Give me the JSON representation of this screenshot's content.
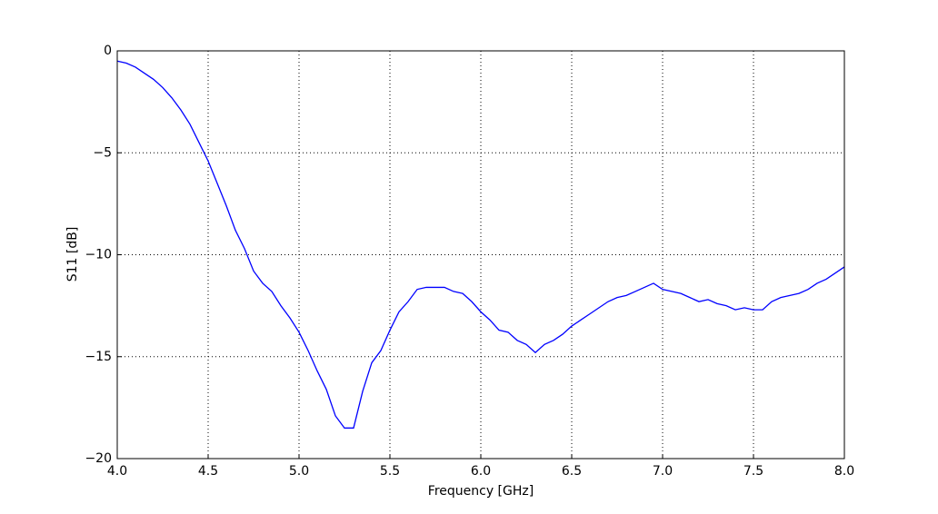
{
  "chart_data": {
    "type": "line",
    "xlabel": "Frequency [GHz]",
    "ylabel": "S11 [dB]",
    "grid": true,
    "x": [
      4.0,
      4.05,
      4.1,
      4.15,
      4.2,
      4.25,
      4.3,
      4.35,
      4.4,
      4.45,
      4.5,
      4.55,
      4.6,
      4.65,
      4.7,
      4.75,
      4.8,
      4.85,
      4.9,
      4.95,
      5.0,
      5.05,
      5.1,
      5.15,
      5.2,
      5.25,
      5.3,
      5.35,
      5.4,
      5.45,
      5.5,
      5.55,
      5.6,
      5.65,
      5.7,
      5.75,
      5.8,
      5.85,
      5.9,
      5.95,
      6.0,
      6.05,
      6.1,
      6.15,
      6.2,
      6.25,
      6.3,
      6.35,
      6.4,
      6.45,
      6.5,
      6.55,
      6.6,
      6.65,
      6.7,
      6.75,
      6.8,
      6.85,
      6.9,
      6.95,
      7.0,
      7.05,
      7.1,
      7.15,
      7.2,
      7.25,
      7.3,
      7.35,
      7.4,
      7.45,
      7.5,
      7.55,
      7.6,
      7.65,
      7.7,
      7.75,
      7.8,
      7.85,
      7.9,
      7.95,
      8.0
    ],
    "series": [
      {
        "color": "#0000ff",
        "values": [
          -0.5,
          -0.6,
          -0.8,
          -1.1,
          -1.4,
          -1.8,
          -2.3,
          -2.9,
          -3.6,
          -4.5,
          -5.4,
          -6.5,
          -7.6,
          -8.8,
          -9.7,
          -10.8,
          -11.4,
          -11.8,
          -12.5,
          -13.1,
          -13.8,
          -14.7,
          -15.7,
          -16.6,
          -17.9,
          -18.5,
          -18.5,
          -16.7,
          -15.3,
          -14.7,
          -13.7,
          -12.8,
          -12.3,
          -11.7,
          -11.6,
          -11.6,
          -11.6,
          -11.8,
          -11.9,
          -12.3,
          -12.8,
          -13.2,
          -13.7,
          -13.8,
          -14.2,
          -14.4,
          -14.8,
          -14.4,
          -14.2,
          -13.9,
          -13.5,
          -13.2,
          -12.9,
          -12.6,
          -12.3,
          -12.1,
          -12.0,
          -11.8,
          -11.6,
          -11.4,
          -11.7,
          -11.8,
          -11.9,
          -12.1,
          -12.3,
          -12.2,
          -12.4,
          -12.5,
          -12.7,
          -12.6,
          -12.7,
          -12.7,
          -12.3,
          -12.1,
          -12.0,
          -11.9,
          -11.7,
          -11.4,
          -11.2,
          -10.9,
          -10.6
        ]
      }
    ],
    "xlim": [
      4,
      8
    ],
    "ylim": [
      -20,
      0
    ],
    "xticks": [
      {
        "value": 4,
        "label": "4.0"
      },
      {
        "value": 4.5,
        "label": "4.5"
      },
      {
        "value": 5,
        "label": "5.0"
      },
      {
        "value": 5.5,
        "label": "5.5"
      },
      {
        "value": 6,
        "label": "6.0"
      },
      {
        "value": 6.5,
        "label": "6.5"
      },
      {
        "value": 7,
        "label": "7.0"
      },
      {
        "value": 7.5,
        "label": "7.5"
      },
      {
        "value": 8,
        "label": "8.0"
      }
    ],
    "yticks": [
      {
        "value": -20,
        "label": "−20"
      },
      {
        "value": -15,
        "label": "−15"
      },
      {
        "value": -10,
        "label": "−10"
      },
      {
        "value": -5,
        "label": "−5"
      },
      0
    ]
  }
}
